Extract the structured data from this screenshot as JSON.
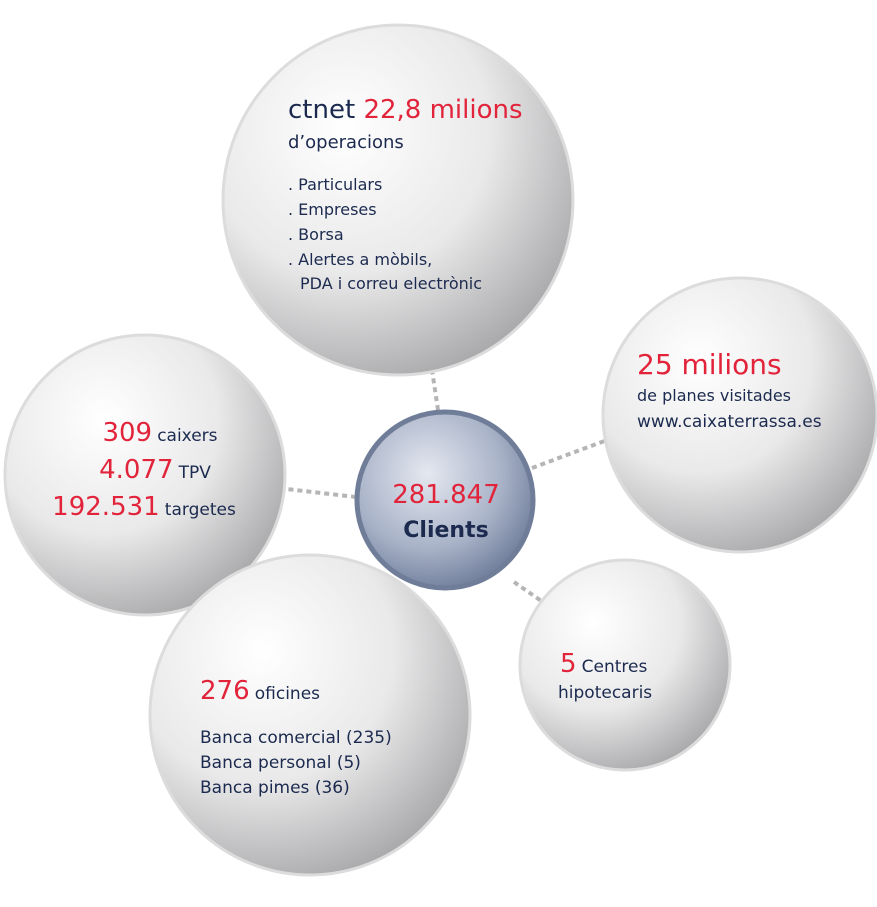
{
  "center": {
    "number": "281.847",
    "label": "Clients"
  },
  "nodes": [
    {
      "prefix": "ctnet",
      "number": "22,8 milions",
      "subtitle": "d’operacions",
      "items": [
        ". Particulars",
        ". Empreses",
        ". Borsa",
        ". Alertes a mòbils,",
        "PDA i correu electrònic"
      ]
    },
    {
      "number": "25 milions",
      "lines": [
        "de planes visitades",
        "www.caixaterrassa.es"
      ]
    },
    {
      "rows": [
        {
          "number": "309",
          "label": "caixers"
        },
        {
          "number": "4.077",
          "label": "TPV"
        },
        {
          "number": "192.531",
          "label": "targetes"
        }
      ]
    },
    {
      "number": "276",
      "label": "oficines",
      "items": [
        "Banca comercial (235)",
        "Banca personal (5)",
        "Banca pimes (36)"
      ]
    },
    {
      "number": "5",
      "label": "Centres",
      "lines": [
        "hipotecaris"
      ]
    }
  ]
}
